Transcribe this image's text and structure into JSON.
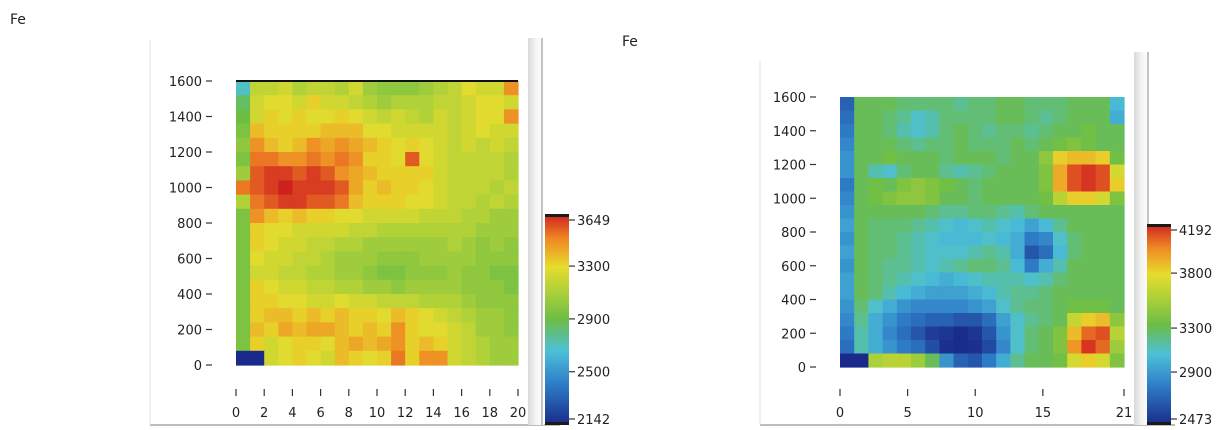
{
  "chart_data": [
    {
      "type": "heatmap",
      "title": "Fe",
      "x_ticks": [
        0,
        2,
        4,
        6,
        8,
        10,
        12,
        14,
        16,
        18,
        20
      ],
      "y_ticks": [
        0,
        200,
        400,
        600,
        800,
        1000,
        1200,
        1400,
        1600
      ],
      "xlim": [
        0,
        20
      ],
      "ylim": [
        0,
        1600
      ],
      "colorbar": {
        "min": 2142,
        "max": 3649,
        "labels": [
          "3649",
          "3300",
          "2900",
          "2500",
          "2142"
        ],
        "values": [
          3649,
          3300,
          2900,
          2500,
          2142
        ]
      },
      "n_cols": 20,
      "n_rows": 20,
      "grid_values": [
        [
          2700,
          3150,
          3150,
          3200,
          3100,
          3150,
          3150,
          3100,
          3200,
          3050,
          3000,
          3000,
          3000,
          3050,
          3100,
          3150,
          3250,
          3200,
          3200,
          3450
        ],
        [
          2850,
          3200,
          3250,
          3250,
          3200,
          3300,
          3200,
          3200,
          3150,
          3100,
          3050,
          3100,
          3100,
          3100,
          3150,
          3150,
          3200,
          3250,
          3250,
          3200
        ],
        [
          2900,
          3200,
          3300,
          3250,
          3300,
          3250,
          3250,
          3300,
          3250,
          3200,
          3150,
          3200,
          3150,
          3100,
          3200,
          3150,
          3200,
          3250,
          3250,
          3450
        ],
        [
          2950,
          3350,
          3300,
          3300,
          3300,
          3300,
          3350,
          3350,
          3350,
          3250,
          3250,
          3200,
          3200,
          3200,
          3200,
          3150,
          3200,
          3250,
          3200,
          3200
        ],
        [
          3000,
          3450,
          3350,
          3300,
          3350,
          3450,
          3400,
          3450,
          3400,
          3350,
          3300,
          3250,
          3300,
          3250,
          3200,
          3150,
          3200,
          3150,
          3200,
          3150
        ],
        [
          2950,
          3500,
          3500,
          3450,
          3450,
          3500,
          3450,
          3500,
          3450,
          3300,
          3300,
          3250,
          3550,
          3250,
          3200,
          3150,
          3150,
          3150,
          3150,
          3100
        ],
        [
          3050,
          3550,
          3600,
          3600,
          3550,
          3600,
          3550,
          3450,
          3400,
          3350,
          3300,
          3300,
          3300,
          3300,
          3200,
          3150,
          3150,
          3150,
          3150,
          3100
        ],
        [
          3500,
          3550,
          3600,
          3650,
          3600,
          3600,
          3600,
          3550,
          3400,
          3300,
          3350,
          3300,
          3300,
          3250,
          3200,
          3150,
          3150,
          3150,
          3100,
          3150
        ],
        [
          3100,
          3500,
          3550,
          3600,
          3600,
          3550,
          3550,
          3500,
          3350,
          3300,
          3300,
          3300,
          3250,
          3250,
          3200,
          3150,
          3150,
          3100,
          3150,
          3100
        ],
        [
          2950,
          3450,
          3350,
          3300,
          3350,
          3300,
          3300,
          3250,
          3250,
          3200,
          3200,
          3200,
          3200,
          3150,
          3150,
          3150,
          3100,
          3100,
          3050,
          3050
        ],
        [
          2950,
          3300,
          3250,
          3250,
          3200,
          3200,
          3200,
          3200,
          3150,
          3150,
          3100,
          3100,
          3100,
          3100,
          3100,
          3100,
          3100,
          3050,
          3050,
          3050
        ],
        [
          2950,
          3300,
          3250,
          3200,
          3200,
          3150,
          3150,
          3100,
          3100,
          3050,
          3050,
          3050,
          3050,
          3050,
          3050,
          3100,
          3050,
          3000,
          3050,
          3000
        ],
        [
          2950,
          3250,
          3200,
          3200,
          3150,
          3150,
          3100,
          3050,
          3050,
          3050,
          3000,
          3000,
          3000,
          3050,
          3050,
          3050,
          3050,
          3000,
          3000,
          3000
        ],
        [
          2950,
          3200,
          3200,
          3150,
          3150,
          3100,
          3100,
          3050,
          3050,
          3000,
          2950,
          2950,
          3000,
          3000,
          3000,
          3050,
          3000,
          3000,
          2950,
          2950
        ],
        [
          2950,
          3300,
          3250,
          3200,
          3200,
          3150,
          3150,
          3100,
          3100,
          3050,
          3050,
          3000,
          3050,
          3050,
          3050,
          3050,
          3000,
          3000,
          3000,
          2950
        ],
        [
          2950,
          3300,
          3300,
          3250,
          3250,
          3200,
          3200,
          3250,
          3200,
          3200,
          3150,
          3150,
          3150,
          3100,
          3100,
          3100,
          3050,
          3000,
          3000,
          3000
        ],
        [
          2950,
          3300,
          3350,
          3350,
          3300,
          3350,
          3300,
          3350,
          3300,
          3300,
          3250,
          3350,
          3300,
          3250,
          3200,
          3150,
          3100,
          3050,
          3050,
          3000
        ],
        [
          2950,
          3350,
          3300,
          3400,
          3350,
          3400,
          3400,
          3350,
          3300,
          3350,
          3300,
          3450,
          3300,
          3250,
          3250,
          3200,
          3150,
          3050,
          3050,
          3000
        ],
        [
          2950,
          3300,
          3200,
          3250,
          3300,
          3300,
          3250,
          3350,
          3400,
          3350,
          3400,
          3450,
          3300,
          3350,
          3300,
          3200,
          3150,
          3100,
          3050,
          3050
        ],
        [
          2142,
          2142,
          3200,
          3250,
          3300,
          3250,
          3200,
          3350,
          3300,
          3250,
          3300,
          3500,
          3300,
          3450,
          3450,
          3200,
          3150,
          3100,
          3050,
          3050
        ]
      ]
    },
    {
      "type": "heatmap",
      "title": "Fe",
      "x_ticks": [
        0,
        5,
        10,
        15,
        21
      ],
      "y_ticks": [
        0,
        200,
        400,
        600,
        800,
        1000,
        1200,
        1400,
        1600
      ],
      "xlim": [
        0,
        21
      ],
      "ylim": [
        0,
        1600
      ],
      "colorbar": {
        "min": 2473,
        "max": 4192,
        "labels": [
          "4192",
          "3800",
          "3300",
          "2900",
          "2473"
        ],
        "values": [
          4192,
          3800,
          3300,
          2900,
          2473
        ]
      },
      "n_cols": 20,
      "n_rows": 20,
      "grid_values": [
        [
          2700,
          3300,
          3300,
          3300,
          3250,
          3250,
          3250,
          3250,
          3200,
          3250,
          3250,
          3300,
          3300,
          3250,
          3250,
          3250,
          3300,
          3300,
          3300,
          3050
        ],
        [
          2750,
          3300,
          3300,
          3250,
          3200,
          3100,
          3150,
          3250,
          3250,
          3250,
          3250,
          3300,
          3300,
          3250,
          3200,
          3250,
          3300,
          3300,
          3300,
          3000
        ],
        [
          2800,
          3300,
          3300,
          3250,
          3150,
          3100,
          3150,
          3250,
          3300,
          3250,
          3200,
          3250,
          3250,
          3200,
          3250,
          3300,
          3300,
          3350,
          3300,
          3300
        ],
        [
          2850,
          3300,
          3300,
          3300,
          3250,
          3200,
          3250,
          3250,
          3300,
          3250,
          3250,
          3250,
          3300,
          3250,
          3300,
          3350,
          3400,
          3350,
          3300,
          3300
        ],
        [
          2900,
          3300,
          3300,
          3350,
          3300,
          3300,
          3300,
          3250,
          3300,
          3300,
          3300,
          3250,
          3300,
          3300,
          3450,
          3800,
          3850,
          3850,
          3800,
          3350
        ],
        [
          2900,
          3300,
          3150,
          3100,
          3250,
          3300,
          3300,
          3200,
          3150,
          3200,
          3250,
          3300,
          3300,
          3300,
          3400,
          3900,
          4100,
          4150,
          4100,
          3700
        ],
        [
          2800,
          3300,
          3350,
          3300,
          3400,
          3450,
          3400,
          3350,
          3300,
          3250,
          3300,
          3300,
          3300,
          3300,
          3400,
          3900,
          4100,
          4150,
          4100,
          3800
        ],
        [
          2850,
          3300,
          3350,
          3400,
          3450,
          3450,
          3400,
          3300,
          3300,
          3250,
          3300,
          3300,
          3300,
          3300,
          3350,
          3600,
          3800,
          3800,
          3700,
          3400
        ],
        [
          2900,
          3300,
          3300,
          3300,
          3300,
          3300,
          3250,
          3200,
          3200,
          3250,
          3250,
          3200,
          3150,
          3250,
          3300,
          3300,
          3300,
          3300,
          3300,
          3300
        ],
        [
          2950,
          3300,
          3250,
          3250,
          3250,
          3200,
          3150,
          3100,
          3050,
          3100,
          3150,
          3100,
          3050,
          2950,
          3050,
          3200,
          3300,
          3300,
          3300,
          3300
        ],
        [
          2900,
          3300,
          3250,
          3250,
          3200,
          3150,
          3100,
          3050,
          3050,
          3050,
          3100,
          3050,
          3000,
          2800,
          2850,
          3100,
          3250,
          3300,
          3300,
          3300
        ],
        [
          2950,
          3300,
          3250,
          3250,
          3200,
          3150,
          3100,
          3100,
          3100,
          3150,
          3200,
          3150,
          3000,
          2650,
          2750,
          3050,
          3250,
          3300,
          3300,
          3300
        ],
        [
          2900,
          3300,
          3250,
          3200,
          3200,
          3150,
          3100,
          3150,
          3200,
          3250,
          3250,
          3200,
          3050,
          2800,
          3000,
          3150,
          3300,
          3300,
          3300,
          3300
        ],
        [
          2950,
          3300,
          3250,
          3200,
          3150,
          3100,
          3050,
          3000,
          3050,
          3100,
          3150,
          3150,
          3150,
          3100,
          3150,
          3250,
          3300,
          3300,
          3300,
          3300
        ],
        [
          2950,
          3300,
          3250,
          3150,
          3050,
          3000,
          2950,
          2950,
          2950,
          3000,
          3050,
          3150,
          3200,
          3200,
          3250,
          3300,
          3300,
          3300,
          3300,
          3300
        ],
        [
          2900,
          3250,
          3100,
          3000,
          2900,
          2850,
          2850,
          2850,
          2850,
          2900,
          2950,
          3100,
          3200,
          3250,
          3250,
          3300,
          3350,
          3350,
          3350,
          3300
        ],
        [
          2850,
          3200,
          3000,
          2900,
          2800,
          2750,
          2700,
          2700,
          2650,
          2650,
          2750,
          2950,
          3100,
          3200,
          3250,
          3300,
          3650,
          3800,
          3850,
          3450
        ],
        [
          2800,
          3150,
          3000,
          2850,
          2750,
          2650,
          2550,
          2520,
          2480,
          2520,
          2650,
          2900,
          3100,
          3250,
          3300,
          3400,
          3850,
          4050,
          4100,
          3600
        ],
        [
          2750,
          3150,
          3000,
          2900,
          2800,
          2750,
          2620,
          2500,
          2480,
          2500,
          2600,
          2850,
          3100,
          3250,
          3300,
          3400,
          3950,
          4150,
          4050,
          3500
        ],
        [
          2473,
          2473,
          3550,
          3600,
          3600,
          3500,
          3300,
          2900,
          2700,
          2650,
          2800,
          3000,
          3200,
          3300,
          3300,
          3350,
          3700,
          3800,
          3700,
          3400
        ]
      ]
    }
  ]
}
